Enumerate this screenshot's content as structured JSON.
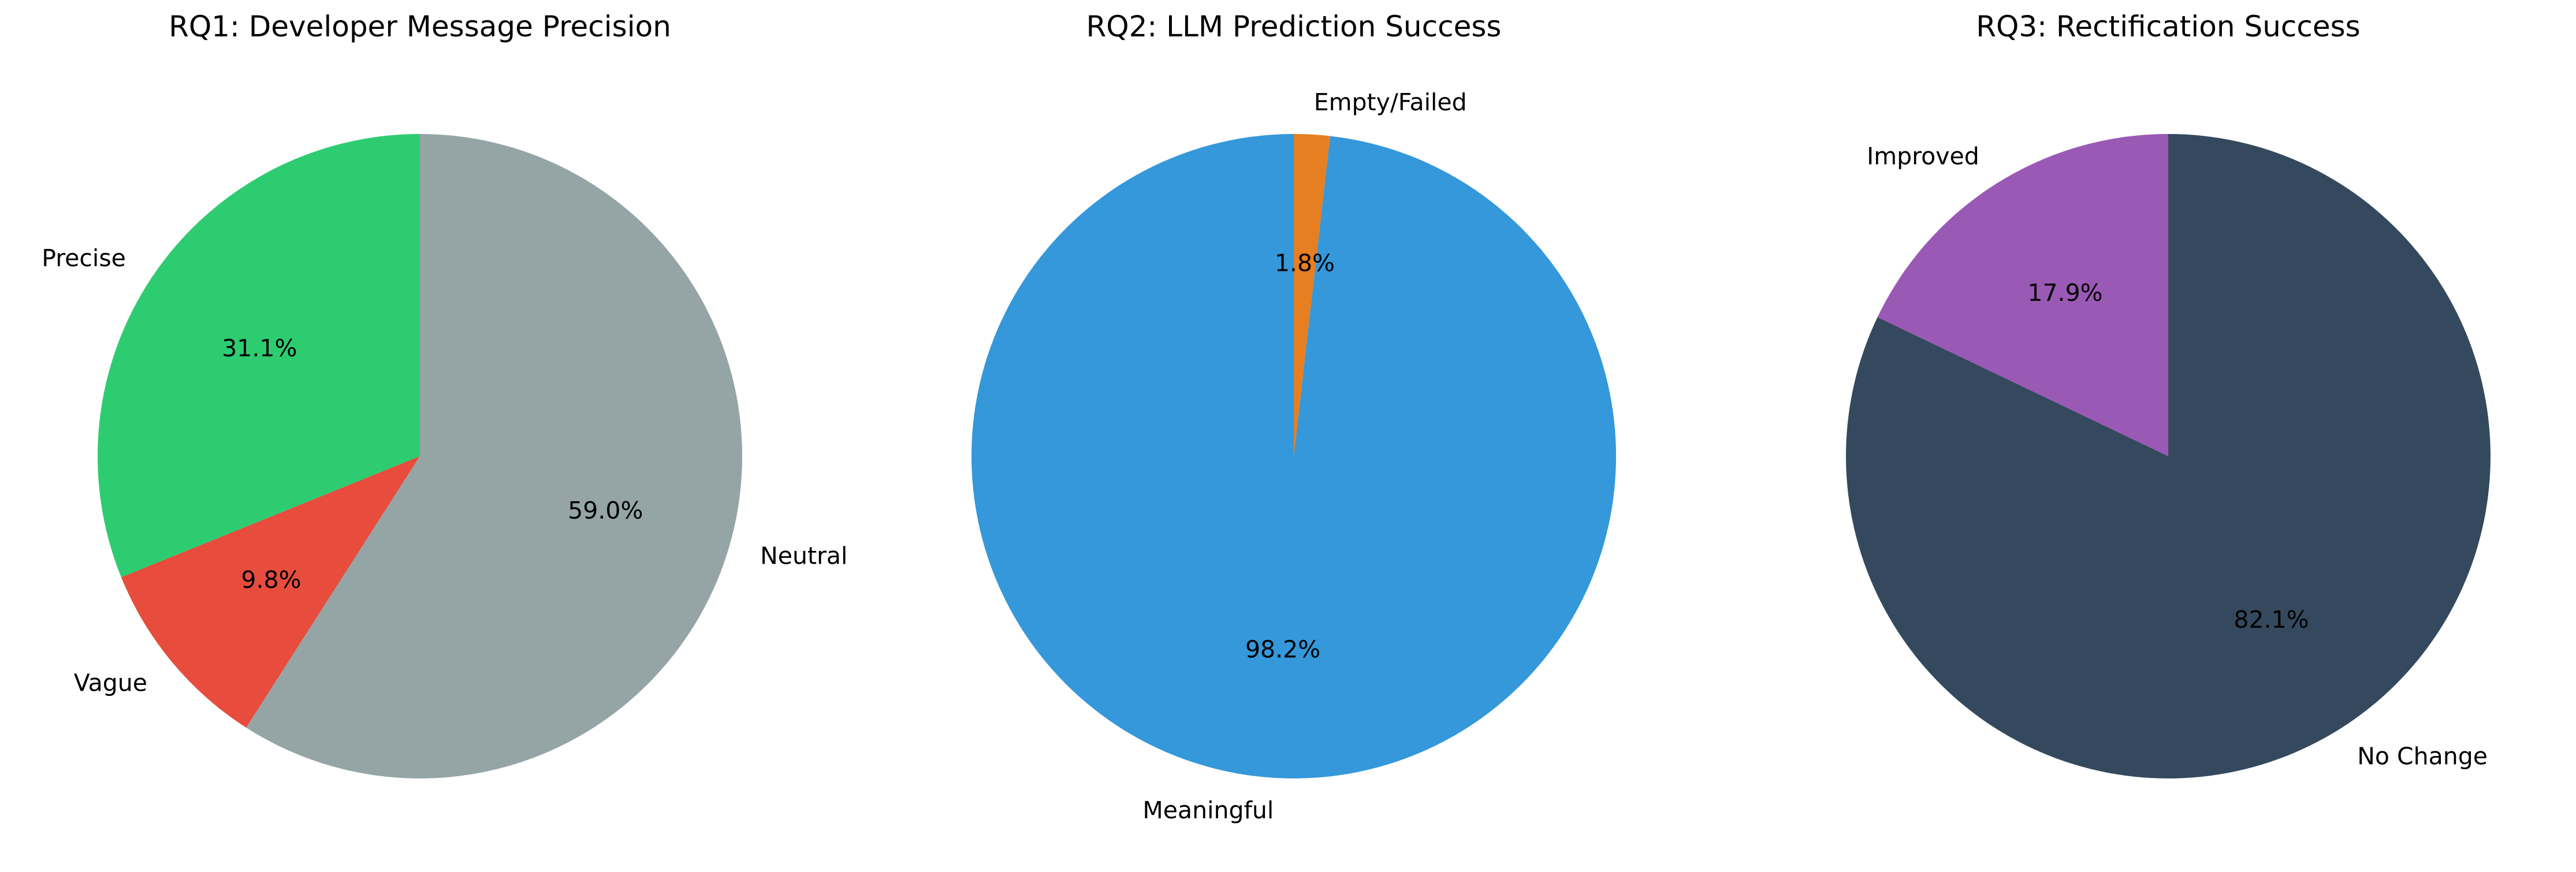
{
  "chart_data": [
    {
      "type": "pie",
      "title": "RQ1: Developer Message Precision",
      "slices": [
        {
          "label": "Precise",
          "percent": 31.1,
          "pct_text": "31.1%",
          "color": "#2ecc71"
        },
        {
          "label": "Vague",
          "percent": 9.8,
          "pct_text": "9.8%",
          "color": "#e74c3c"
        },
        {
          "label": "Neutral",
          "percent": 59.0,
          "pct_text": "59.0%",
          "color": "#95a5a6"
        }
      ]
    },
    {
      "type": "pie",
      "title": "RQ2: LLM Prediction Success",
      "slices": [
        {
          "label": "Meaningful",
          "percent": 98.2,
          "pct_text": "98.2%",
          "color": "#3498db"
        },
        {
          "label": "Empty/Failed",
          "percent": 1.8,
          "pct_text": "1.8%",
          "color": "#e67e22"
        }
      ]
    },
    {
      "type": "pie",
      "title": "RQ3: Rectification Success",
      "slices": [
        {
          "label": "Improved",
          "percent": 17.9,
          "pct_text": "17.9%",
          "color": "#9b59b6"
        },
        {
          "label": "No Change",
          "percent": 82.1,
          "pct_text": "82.1%",
          "color": "#34495e"
        }
      ]
    }
  ]
}
